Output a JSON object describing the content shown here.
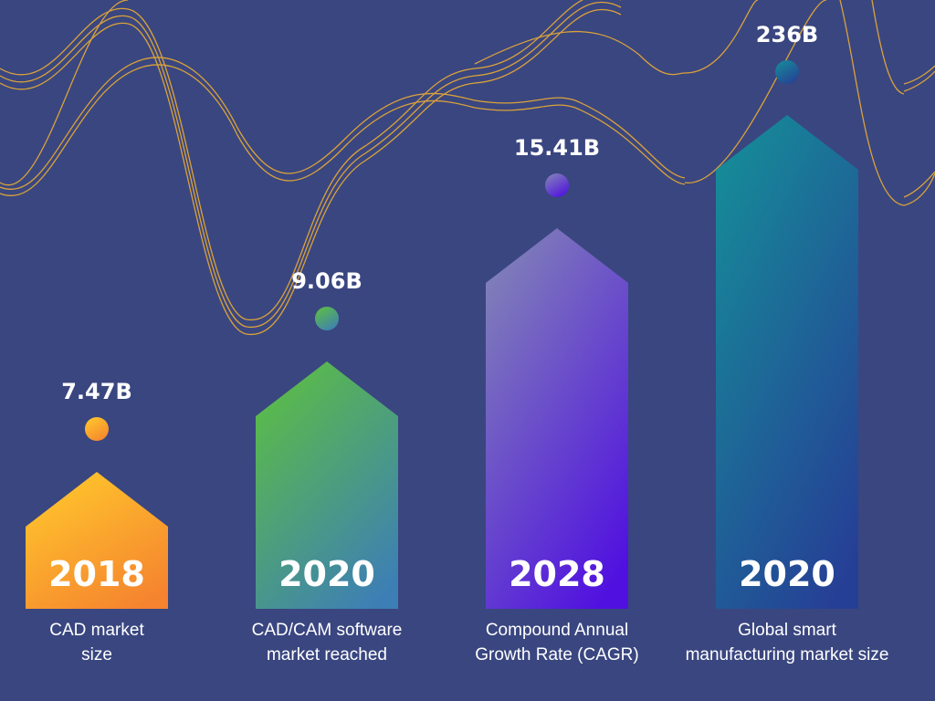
{
  "chart_data": {
    "type": "bar",
    "categories": [
      "2018",
      "2020",
      "2028",
      "2020"
    ],
    "value_labels": [
      "7.47B",
      "9.06B",
      "15.41B",
      "236B"
    ],
    "captions": [
      [
        "CAD market",
        "size"
      ],
      [
        "CAD/CAM software",
        "market reached"
      ],
      [
        "Compound Annual",
        "Growth Rate (CAGR)"
      ],
      [
        "Global smart",
        "manufacturing market size"
      ]
    ],
    "colors": [
      [
        "#ffc72c",
        "#f5832f"
      ],
      [
        "#5cbd45",
        "#3d7fb5"
      ],
      [
        "#8080b8",
        "#5010e0"
      ],
      [
        "#168a98",
        "#263f96"
      ]
    ],
    "background": "#3a4680",
    "decoration_color": "#e0a030"
  }
}
